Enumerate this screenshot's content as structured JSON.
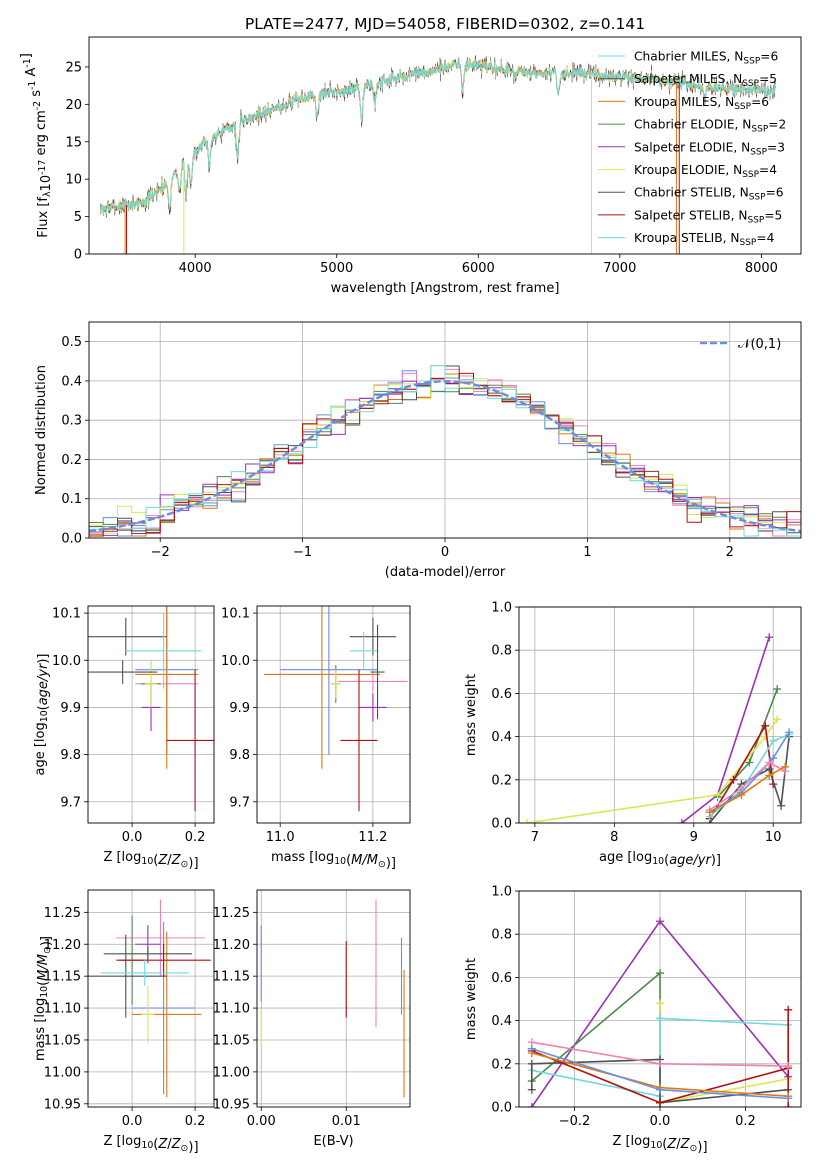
{
  "colors": {
    "Chabrier MILES": "#6a8fe0",
    "Salpeter MILES": "#f080b8",
    "Kroupa MILES": "#e07a10",
    "Chabrier ELODIE": "#4c8a4c",
    "Salpeter ELODIE": "#9a30b8",
    "Kroupa ELODIE": "#d8e850",
    "Chabrier STELIB": "#505050",
    "Salpeter STELIB": "#b01010",
    "Kroupa STELIB": "#70d8e0",
    "gaussian": "#6a8fe0"
  },
  "chart_data": [
    {
      "id": "spectrum",
      "type": "line",
      "title": "PLATE=2477, MJD=54058, FIBERID=0302, z=0.141",
      "xlabel": "wavelength [Angstrom, rest frame]",
      "ylabel": "Flux [f$_\\lambda$10$^{-17}$ erg cm$^{-2}$ s$^{-1}$ A$^{-1}$]",
      "xlim": [
        3250,
        8280
      ],
      "ylim": [
        0,
        29
      ],
      "xticks": [
        4000,
        5000,
        6000,
        7000,
        8000
      ],
      "yticks": [
        0,
        5,
        10,
        15,
        20,
        25
      ],
      "grid": false,
      "legend_position": "right",
      "legend": [
        {
          "label": "Chabrier MILES, N",
          "sub": "SSP",
          "tail": "=6",
          "color_key": "Kroupa STELIB"
        },
        {
          "label": "Salpeter MILES, N",
          "sub": "SSP",
          "tail": "=5",
          "color_key": "Chabrier STELIB"
        },
        {
          "label": "Kroupa MILES, N",
          "sub": "SSP",
          "tail": "=6",
          "color_key": "Kroupa MILES"
        },
        {
          "label": "Chabrier ELODIE, N",
          "sub": "SSP",
          "tail": "=2",
          "color_key": "Chabrier ELODIE"
        },
        {
          "label": "Salpeter ELODIE, N",
          "sub": "SSP",
          "tail": "=3",
          "color_key": "Salpeter ELODIE"
        },
        {
          "label": "Kroupa ELODIE, N",
          "sub": "SSP",
          "tail": "=4",
          "color_key": "Kroupa ELODIE"
        },
        {
          "label": "Chabrier STELIB, N",
          "sub": "SSP",
          "tail": "=6",
          "color_key": "Chabrier STELIB"
        },
        {
          "label": "Salpeter STELIB, N",
          "sub": "SSP",
          "tail": "=5",
          "color_key": "Salpeter STELIB"
        },
        {
          "label": "Kroupa STELIB, N",
          "sub": "SSP",
          "tail": "=4",
          "color_key": "Kroupa STELIB"
        }
      ],
      "continuum": [
        [
          3330,
          6.0
        ],
        [
          3500,
          6.5
        ],
        [
          3650,
          7.0
        ],
        [
          3800,
          9.5
        ],
        [
          3950,
          13.0
        ],
        [
          4100,
          15.5
        ],
        [
          4300,
          17.5
        ],
        [
          4500,
          19.0
        ],
        [
          4700,
          20.5
        ],
        [
          4900,
          21.5
        ],
        [
          5100,
          22.0
        ],
        [
          5300,
          23.0
        ],
        [
          5500,
          23.8
        ],
        [
          5700,
          24.5
        ],
        [
          5850,
          25.5
        ],
        [
          6000,
          25.2
        ],
        [
          6200,
          24.5
        ],
        [
          6400,
          24.0
        ],
        [
          6600,
          24.2
        ],
        [
          6800,
          24.0
        ],
        [
          7000,
          23.5
        ],
        [
          7200,
          23.5
        ],
        [
          7400,
          23.0
        ],
        [
          7600,
          22.3
        ],
        [
          7800,
          22.0
        ],
        [
          8000,
          22.0
        ],
        [
          8100,
          21.5
        ]
      ],
      "dips": [
        [
          3820,
          4.0
        ],
        [
          3890,
          3.5
        ],
        [
          3935,
          5.5
        ],
        [
          3970,
          4.5
        ],
        [
          4100,
          4.0
        ],
        [
          4300,
          5.0
        ],
        [
          4860,
          3.5
        ],
        [
          5175,
          5.0
        ],
        [
          5270,
          3.0
        ],
        [
          5890,
          4.0
        ],
        [
          6565,
          3.0
        ],
        [
          7600,
          2.0
        ]
      ]
    },
    {
      "id": "residuals",
      "type": "histogram",
      "xlabel": "(data-model)/error",
      "ylabel": "Normed distribution",
      "xlim": [
        -2.5,
        2.5
      ],
      "ylim": [
        0,
        0.55
      ],
      "xticks": [
        -2,
        -1,
        0,
        1,
        2
      ],
      "yticks": [
        0.0,
        0.1,
        0.2,
        0.3,
        0.4,
        0.5
      ],
      "grid": true,
      "legend_position": "top-right",
      "legend_label": "$\\mathcal{N}(0,1)$",
      "bin_width": 0.1
    },
    {
      "id": "age-vs-Z",
      "type": "scatter",
      "xlabel": "Z [log$_{10}$($Z$/$Z_\\odot$)]",
      "ylabel": "age  [log$_{10}$($age/yr$)]",
      "xlim": [
        -0.14,
        0.26
      ],
      "ylim": [
        9.655,
        10.115
      ],
      "xticks": [
        0.0,
        0.2
      ],
      "yticks": [
        9.7,
        9.8,
        9.9,
        10.0,
        10.1
      ],
      "grid": true,
      "points": [
        {
          "model": "Chabrier MILES",
          "x": 0.11,
          "xerr": 0.1,
          "y": 9.98,
          "yerr": 0.18
        },
        {
          "model": "Salpeter MILES",
          "x": 0.11,
          "xerr": 0.1,
          "y": 9.95,
          "yerr": 0.15
        },
        {
          "model": "Kroupa MILES",
          "x": 0.11,
          "xerr": 0.1,
          "y": 9.97,
          "yerr": 0.2
        },
        {
          "model": "Chabrier ELODIE",
          "x": 0.06,
          "xerr": 0.03,
          "y": 9.95,
          "yerr": 0.05
        },
        {
          "model": "Salpeter ELODIE",
          "x": 0.06,
          "xerr": 0.03,
          "y": 9.9,
          "yerr": 0.05
        },
        {
          "model": "Kroupa ELODIE",
          "x": 0.06,
          "xerr": 0.02,
          "y": 9.95,
          "yerr": 0.05
        },
        {
          "model": "Chabrier STELIB",
          "x": -0.02,
          "xerr": 0.13,
          "y": 10.05,
          "yerr": 0.04
        },
        {
          "model": "Salpeter STELIB",
          "x": 0.2,
          "xerr": 0.09,
          "y": 9.83,
          "yerr": 0.15
        },
        {
          "model": "Kroupa STELIB",
          "x": 0.1,
          "xerr": 0.12,
          "y": 10.02,
          "yerr": 0.08
        },
        {
          "model": "Chabrier STELIB",
          "x": -0.03,
          "xerr": 0.11,
          "y": 9.975,
          "yerr": 0.025
        }
      ]
    },
    {
      "id": "age-vs-mass",
      "type": "scatter",
      "xlabel": "mass [log$_{10}$($M/M_\\odot$)]",
      "ylabel": "",
      "xlim": [
        10.95,
        11.28
      ],
      "ylim": [
        9.655,
        10.115
      ],
      "xticks": [
        11.0,
        11.2
      ],
      "yticks": [
        9.7,
        9.8,
        9.9,
        10.0,
        10.1
      ],
      "grid": true,
      "points": [
        {
          "model": "Chabrier MILES",
          "x": 11.105,
          "xerr": 0.105,
          "y": 9.98,
          "yerr": 0.18
        },
        {
          "model": "Salpeter MILES",
          "x": 11.2,
          "xerr": 0.075,
          "y": 9.955,
          "yerr": 0.02
        },
        {
          "model": "Kroupa MILES",
          "x": 11.09,
          "xerr": 0.125,
          "y": 9.97,
          "yerr": 0.2
        },
        {
          "model": "Chabrier ELODIE",
          "x": 11.12,
          "xerr": 0.01,
          "y": 9.95,
          "yerr": 0.04
        },
        {
          "model": "Salpeter ELODIE",
          "x": 11.2,
          "xerr": 0.03,
          "y": 9.9,
          "yerr": 0.03
        },
        {
          "model": "Kroupa ELODIE",
          "x": 11.12,
          "xerr": 0.01,
          "y": 9.95,
          "yerr": 0.03
        },
        {
          "model": "Chabrier STELIB",
          "x": 11.2,
          "xerr": 0.05,
          "y": 10.05,
          "yerr": 0.04
        },
        {
          "model": "Salpeter STELIB",
          "x": 11.17,
          "xerr": 0.04,
          "y": 9.83,
          "yerr": 0.15
        },
        {
          "model": "Kroupa STELIB",
          "x": 11.18,
          "xerr": 0.03,
          "y": 10.02,
          "yerr": 0.04
        },
        {
          "model": "Chabrier STELIB",
          "x": 11.21,
          "xerr": 0.015,
          "y": 9.975,
          "yerr": 0.1
        }
      ]
    },
    {
      "id": "massweight-vs-age",
      "type": "line",
      "xlabel": "age  [log$_{10}$($age/yr$)]",
      "ylabel": "mass weight",
      "xlim": [
        6.8,
        10.35
      ],
      "ylim": [
        0,
        1
      ],
      "xticks": [
        7,
        8,
        9,
        10
      ],
      "yticks": [
        0.0,
        0.2,
        0.4,
        0.6,
        0.8,
        1.0
      ],
      "grid": true,
      "series": [
        {
          "model": "Salpeter ELODIE",
          "points": [
            [
              8.85,
              0.0
            ],
            [
              9.3,
              0.13
            ],
            [
              9.95,
              0.86
            ]
          ]
        },
        {
          "model": "Chabrier ELODIE",
          "points": [
            [
              9.3,
              0.12
            ],
            [
              9.7,
              0.28
            ],
            [
              10.05,
              0.62
            ]
          ]
        },
        {
          "model": "Kroupa ELODIE",
          "points": [
            [
              6.9,
              0.0
            ],
            [
              9.3,
              0.13
            ],
            [
              9.9,
              0.4
            ],
            [
              10.05,
              0.48
            ]
          ]
        },
        {
          "model": "Salpeter STELIB",
          "points": [
            [
              9.2,
              0.02
            ],
            [
              9.5,
              0.2
            ],
            [
              9.9,
              0.45
            ],
            [
              10.0,
              0.18
            ]
          ]
        },
        {
          "model": "Chabrier STELIB",
          "points": [
            [
              9.2,
              0.0
            ],
            [
              9.6,
              0.18
            ],
            [
              9.95,
              0.25
            ],
            [
              10.1,
              0.08
            ],
            [
              10.2,
              0.4
            ]
          ]
        },
        {
          "model": "Kroupa STELIB",
          "points": [
            [
              9.2,
              0.03
            ],
            [
              9.6,
              0.15
            ],
            [
              10.0,
              0.38
            ],
            [
              10.2,
              0.41
            ]
          ]
        },
        {
          "model": "Chabrier MILES",
          "points": [
            [
              9.2,
              0.05
            ],
            [
              9.6,
              0.14
            ],
            [
              10.0,
              0.3
            ],
            [
              10.2,
              0.42
            ]
          ]
        },
        {
          "model": "Salpeter MILES",
          "points": [
            [
              9.2,
              0.06
            ],
            [
              9.6,
              0.16
            ],
            [
              9.95,
              0.28
            ],
            [
              10.15,
              0.24
            ]
          ]
        },
        {
          "model": "Kroupa MILES",
          "points": [
            [
              9.2,
              0.05
            ],
            [
              9.6,
              0.13
            ],
            [
              9.95,
              0.22
            ],
            [
              10.15,
              0.26
            ]
          ]
        }
      ]
    },
    {
      "id": "mass-vs-Z",
      "type": "scatter",
      "xlabel": "Z [log$_{10}$($Z$/$Z_\\odot$)]",
      "ylabel": "mass [log$_{10}$($M/M_\\odot$)]",
      "xlim": [
        -0.14,
        0.26
      ],
      "ylim": [
        10.945,
        11.285
      ],
      "xticks": [
        0.0,
        0.2
      ],
      "yticks": [
        10.95,
        11.0,
        11.05,
        11.1,
        11.15,
        11.2,
        11.25
      ],
      "grid": true,
      "points": [
        {
          "model": "Chabrier MILES",
          "x": 0.1,
          "xerr": 0.1,
          "y": 11.1,
          "yerr": 0.135
        },
        {
          "model": "Salpeter MILES",
          "x": 0.09,
          "xerr": 0.14,
          "y": 11.21,
          "yerr": 0.06
        },
        {
          "model": "Kroupa MILES",
          "x": 0.11,
          "xerr": 0.11,
          "y": 11.09,
          "yerr": 0.13
        },
        {
          "model": "Chabrier ELODIE",
          "x": 0.0,
          "xerr": 0.04,
          "y": 11.175,
          "yerr": 0.07
        },
        {
          "model": "Salpeter ELODIE",
          "x": 0.05,
          "xerr": 0.04,
          "y": 11.2,
          "yerr": 0.03
        },
        {
          "model": "Kroupa ELODIE",
          "x": 0.05,
          "xerr": 0.02,
          "y": 11.09,
          "yerr": 0.045
        },
        {
          "model": "Chabrier STELIB",
          "x": -0.02,
          "xerr": 0.13,
          "y": 11.15,
          "yerr": 0.065
        },
        {
          "model": "Salpeter STELIB",
          "x": 0.1,
          "xerr": 0.15,
          "y": 11.175,
          "yerr": 0.025
        },
        {
          "model": "Kroupa STELIB",
          "x": 0.04,
          "xerr": 0.14,
          "y": 11.155,
          "yerr": 0.02
        },
        {
          "model": "Chabrier STELIB",
          "x": 0.05,
          "xerr": 0.14,
          "y": 11.185,
          "yerr": 0.01
        }
      ]
    },
    {
      "id": "mass-vs-ebv",
      "type": "scatter",
      "xlabel": "E(B-V)",
      "ylabel": "",
      "xlim": [
        -0.0005,
        0.0175
      ],
      "ylim": [
        10.945,
        11.285
      ],
      "xticks": [
        0.0,
        0.01
      ],
      "yticks": [
        10.95,
        11.0,
        11.05,
        11.1,
        11.15,
        11.2,
        11.25
      ],
      "grid": true,
      "points": [
        {
          "model": "Chabrier MILES",
          "x": 0.0,
          "xerr": 0,
          "y": 11.17,
          "yerr": 0.06
        },
        {
          "model": "Kroupa ELODIE",
          "x": 0.0,
          "xerr": 0,
          "y": 11.07,
          "yerr": 0.03
        },
        {
          "model": "Salpeter STELIB",
          "x": 0.01,
          "xerr": 0,
          "y": 11.145,
          "yerr": 0.06
        },
        {
          "model": "Salpeter MILES",
          "x": 0.0135,
          "xerr": 0,
          "y": 11.17,
          "yerr": 0.1
        },
        {
          "model": "Chabrier MILES",
          "x": 0.0165,
          "xerr": 0,
          "y": 11.15,
          "yerr": 0.06
        },
        {
          "model": "Kroupa MILES",
          "x": 0.0168,
          "xerr": 0,
          "y": 11.06,
          "yerr": 0.1
        }
      ]
    },
    {
      "id": "massweight-vs-Z",
      "type": "line",
      "xlabel": "Z [log$_{10}$($Z$/$Z_\\odot$)]",
      "ylabel": "mass weight",
      "xlim": [
        -0.33,
        0.33
      ],
      "ylim": [
        0,
        1
      ],
      "xticks": [
        -0.2,
        0.0,
        0.2
      ],
      "yticks": [
        0.0,
        0.2,
        0.4,
        0.6,
        0.8,
        1.0
      ],
      "grid": true,
      "series": [
        {
          "model": "Salpeter ELODIE",
          "points": [
            [
              -0.3,
              0.0
            ],
            [
              0.0,
              0.86
            ],
            [
              0.3,
              0.14
            ]
          ]
        },
        {
          "model": "Chabrier ELODIE",
          "points": [
            [
              -0.3,
              0.12
            ],
            [
              0.0,
              0.62
            ],
            [
              0.0,
              0.02
            ]
          ]
        },
        {
          "model": "Kroupa ELODIE",
          "points": [
            [
              0.0,
              0.48
            ],
            [
              0.0,
              0.02
            ],
            [
              0.3,
              0.13
            ]
          ]
        },
        {
          "model": "Kroupa STELIB",
          "points": [
            [
              -0.3,
              0.17
            ],
            [
              0.0,
              0.05
            ],
            [
              0.0,
              0.41
            ],
            [
              0.3,
              0.38
            ]
          ]
        },
        {
          "model": "Chabrier STELIB",
          "points": [
            [
              -0.3,
              0.08
            ],
            [
              -0.3,
              0.2
            ],
            [
              0.0,
              0.22
            ],
            [
              0.0,
              0.02
            ],
            [
              0.3,
              0.08
            ]
          ]
        },
        {
          "model": "Salpeter STELIB",
          "points": [
            [
              -0.3,
              0.26
            ],
            [
              0.0,
              0.02
            ],
            [
              0.3,
              0.18
            ],
            [
              0.3,
              0.45
            ],
            [
              0.3,
              0.0
            ]
          ]
        },
        {
          "model": "Salpeter MILES",
          "points": [
            [
              -0.3,
              0.3
            ],
            [
              0.0,
              0.2
            ],
            [
              0.3,
              0.19
            ]
          ]
        },
        {
          "model": "Kroupa MILES",
          "points": [
            [
              -0.3,
              0.25
            ],
            [
              0.0,
              0.09
            ],
            [
              0.3,
              0.05
            ]
          ]
        },
        {
          "model": "Chabrier MILES",
          "points": [
            [
              -0.3,
              0.27
            ],
            [
              0.0,
              0.08
            ],
            [
              0.3,
              0.04
            ]
          ]
        }
      ]
    }
  ]
}
